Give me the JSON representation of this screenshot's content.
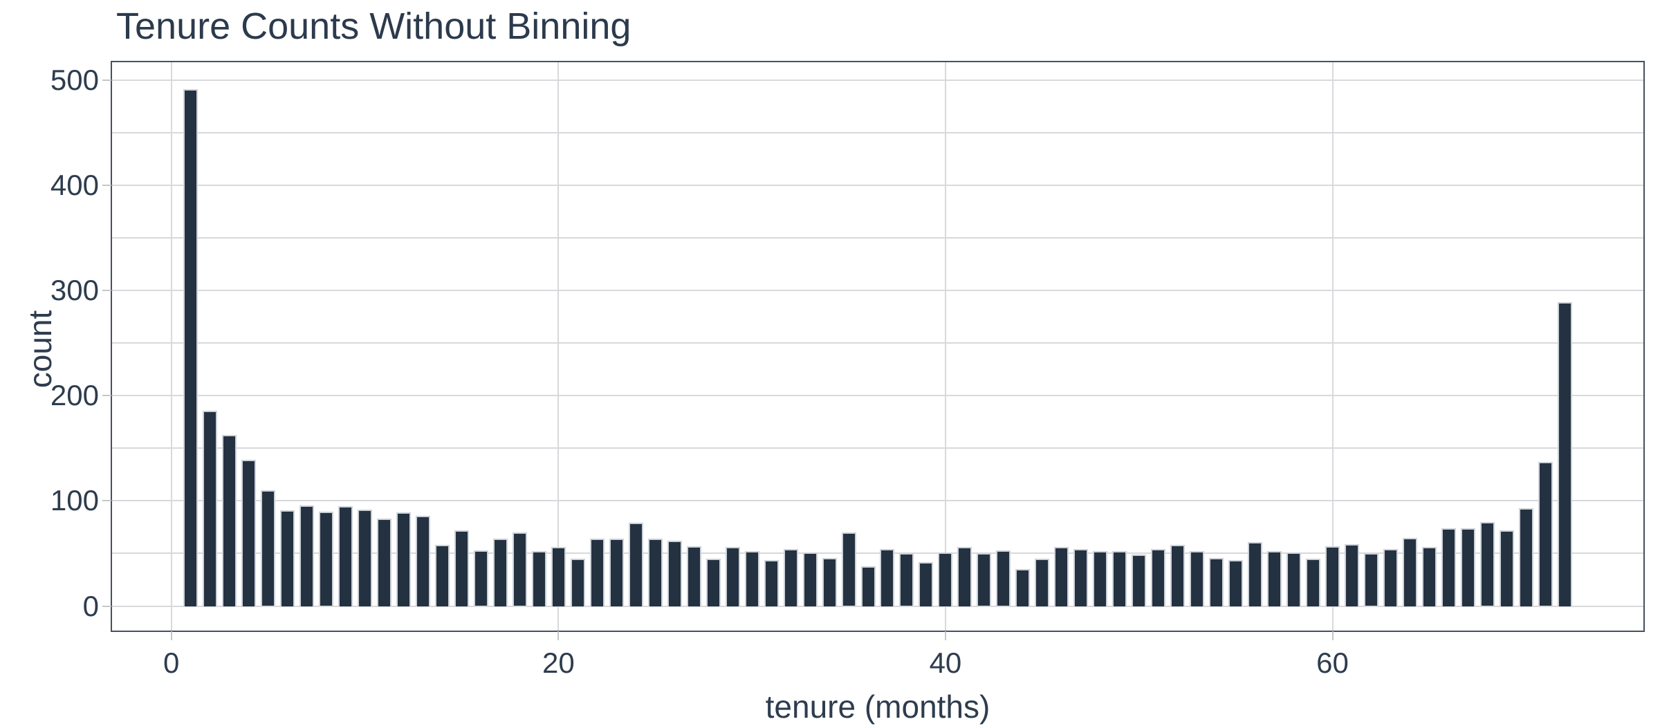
{
  "chart_data": {
    "type": "bar",
    "title": "Tenure Counts Without Binning",
    "xlabel": "tenure (months)",
    "ylabel": "count",
    "categories": [
      1,
      2,
      3,
      4,
      5,
      6,
      7,
      8,
      9,
      10,
      11,
      12,
      13,
      14,
      15,
      16,
      17,
      18,
      19,
      20,
      21,
      22,
      23,
      24,
      25,
      26,
      27,
      28,
      29,
      30,
      31,
      32,
      33,
      34,
      35,
      36,
      37,
      38,
      39,
      40,
      41,
      42,
      43,
      44,
      45,
      46,
      47,
      48,
      49,
      50,
      51,
      52,
      53,
      54,
      55,
      56,
      57,
      58,
      59,
      60,
      61,
      62,
      63,
      64,
      65,
      66,
      67,
      68,
      69,
      70,
      71,
      72
    ],
    "values": [
      492,
      186,
      163,
      139,
      110,
      91,
      96,
      90,
      95,
      92,
      83,
      89,
      86,
      58,
      72,
      53,
      64,
      70,
      52,
      56,
      45,
      64,
      64,
      79,
      64,
      62,
      57,
      45,
      56,
      52,
      44,
      54,
      51,
      46,
      70,
      38,
      54,
      50,
      42,
      51,
      56,
      50,
      53,
      35,
      45,
      56,
      54,
      52,
      52,
      49,
      54,
      58,
      52,
      46,
      44,
      61,
      52,
      51,
      45,
      57,
      59,
      50,
      54,
      65,
      56,
      74,
      74,
      80,
      72,
      93,
      137,
      289
    ],
    "x_ticks": [
      0,
      20,
      40,
      60
    ],
    "y_ticks": [
      0,
      100,
      200,
      300,
      400,
      500
    ],
    "y_grid_step": 50,
    "xlim": [
      -3.1,
      76.1
    ],
    "ylim": [
      -24,
      518
    ],
    "grid": "on",
    "legend_position": "none",
    "bar_width_fraction": 0.75
  },
  "style": {
    "bar_color": "#243140",
    "bar_edge_color": "#ccd2d9",
    "text_color": "#2e3c4e",
    "title_color": "#2c3a4c",
    "grid_color": "#d8d9dc",
    "spine_color": "#44505e",
    "tick_color": "#c2c6cc",
    "background_color": "#ffffff"
  }
}
